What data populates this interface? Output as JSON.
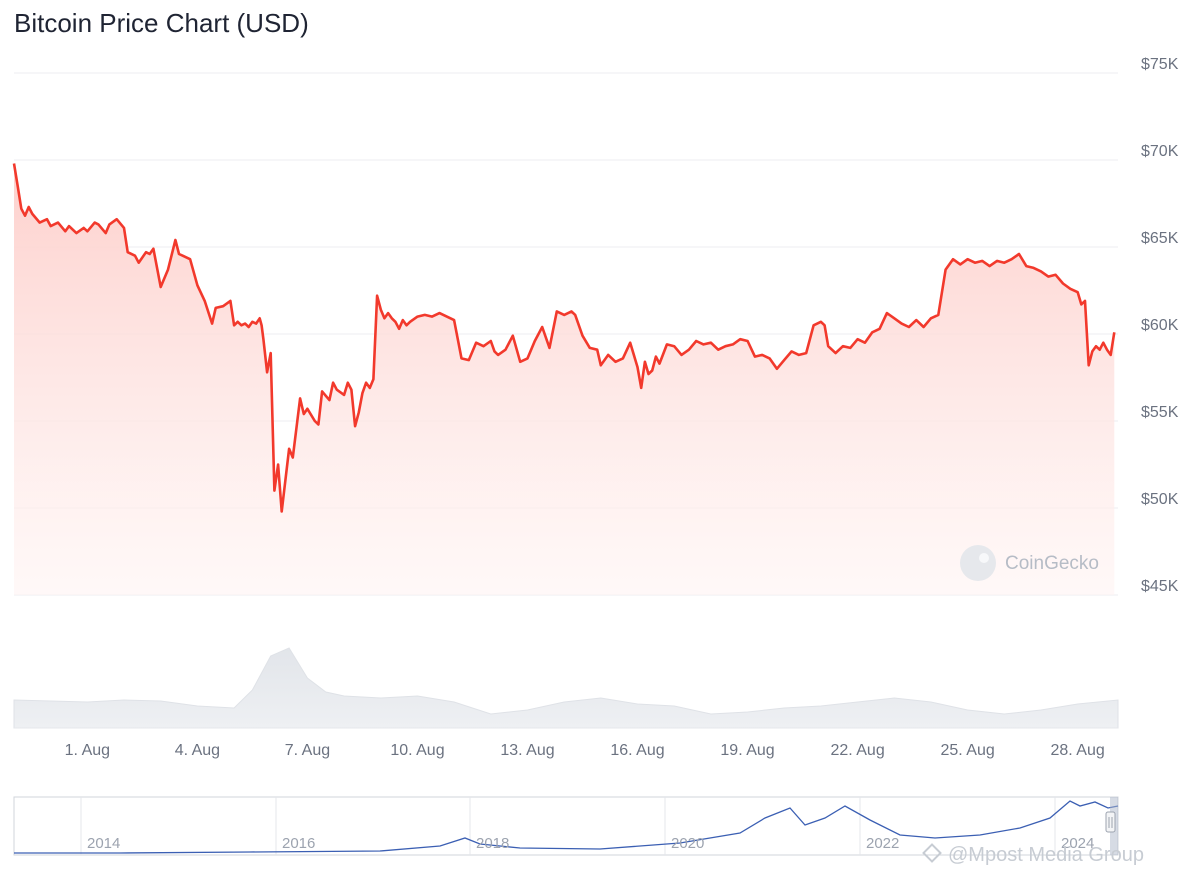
{
  "title": "Bitcoin Price Chart (USD)",
  "watermark": "CoinGecko",
  "credit": "@Mpost Media Group",
  "colors": {
    "line": "#f2392c",
    "fillTop": "#fdd3d0",
    "volume": "#e5e7eb",
    "navigator": "#3b5fb3"
  },
  "chart_data": [
    {
      "type": "area",
      "title": "Bitcoin Price Chart (USD)",
      "xlabel": "",
      "ylabel": "",
      "ylim": [
        45000,
        75000
      ],
      "xlim": [
        0,
        30.1
      ],
      "y_axis_side": "right",
      "grid": true,
      "yticks": [
        {
          "value": 75000,
          "label": "$75K"
        },
        {
          "value": 70000,
          "label": "$70K"
        },
        {
          "value": 65000,
          "label": "$65K"
        },
        {
          "value": 60000,
          "label": "$60K"
        },
        {
          "value": 55000,
          "label": "$55K"
        },
        {
          "value": 50000,
          "label": "$50K"
        },
        {
          "value": 45000,
          "label": "$45K"
        }
      ],
      "xticks": [
        {
          "value": 2,
          "label": "1. Aug"
        },
        {
          "value": 5,
          "label": "4. Aug"
        },
        {
          "value": 8,
          "label": "7. Aug"
        },
        {
          "value": 11,
          "label": "10. Aug"
        },
        {
          "value": 14,
          "label": "13. Aug"
        },
        {
          "value": 17,
          "label": "16. Aug"
        },
        {
          "value": 20,
          "label": "19. Aug"
        },
        {
          "value": 23,
          "label": "22. Aug"
        },
        {
          "value": 26,
          "label": "25. Aug"
        },
        {
          "value": 29,
          "label": "28. Aug"
        }
      ],
      "series": [
        {
          "x": [
            0,
            0.1,
            0.2,
            0.3,
            0.4,
            0.5,
            0.7,
            0.9,
            1.0,
            1.2,
            1.4,
            1.5,
            1.7,
            1.9,
            2.0,
            2.2,
            2.3,
            2.5,
            2.6,
            2.8,
            3.0,
            3.1,
            3.3,
            3.4,
            3.6,
            3.7,
            3.8,
            4.0,
            4.2,
            4.4,
            4.5,
            4.6,
            4.7,
            4.8,
            5.0,
            5.2,
            5.4,
            5.5,
            5.7,
            5.9,
            6.0,
            6.1,
            6.2,
            6.3,
            6.4,
            6.5,
            6.6,
            6.7,
            6.75,
            6.8,
            6.9,
            7.0,
            7.1,
            7.2,
            7.3,
            7.5,
            7.6,
            7.8,
            7.9,
            8.0,
            8.2,
            8.3,
            8.4,
            8.6,
            8.7,
            8.8,
            9.0,
            9.1,
            9.2,
            9.3,
            9.4,
            9.5,
            9.6,
            9.7,
            9.8,
            9.9,
            10.0,
            10.1,
            10.2,
            10.3,
            10.4,
            10.5,
            10.6,
            10.7,
            10.8,
            11.0,
            11.2,
            11.4,
            11.6,
            11.8,
            12.0,
            12.2,
            12.4,
            12.6,
            12.8,
            13.0,
            13.1,
            13.2,
            13.4,
            13.6,
            13.8,
            14.0,
            14.2,
            14.4,
            14.6,
            14.8,
            15.0,
            15.2,
            15.3,
            15.5,
            15.7,
            15.9,
            16.0,
            16.2,
            16.4,
            16.6,
            16.8,
            17.0,
            17.1,
            17.2,
            17.3,
            17.4,
            17.5,
            17.6,
            17.8,
            18.0,
            18.2,
            18.4,
            18.6,
            18.8,
            19.0,
            19.2,
            19.4,
            19.6,
            19.8,
            20.0,
            20.2,
            20.4,
            20.6,
            20.8,
            21.0,
            21.2,
            21.4,
            21.6,
            21.8,
            22.0,
            22.1,
            22.2,
            22.4,
            22.6,
            22.8,
            23.0,
            23.2,
            23.4,
            23.6,
            23.8,
            24.0,
            24.2,
            24.4,
            24.6,
            24.8,
            25.0,
            25.2,
            25.4,
            25.6,
            25.8,
            26.0,
            26.2,
            26.4,
            26.6,
            26.8,
            27.0,
            27.2,
            27.4,
            27.6,
            27.8,
            28.0,
            28.2,
            28.4,
            28.6,
            28.8,
            29.0,
            29.1,
            29.2,
            29.3,
            29.4,
            29.5,
            29.6,
            29.7,
            29.8,
            29.9,
            30.0
          ],
          "y": [
            69800,
            68500,
            67200,
            66800,
            67300,
            66900,
            66400,
            66600,
            66200,
            66400,
            65900,
            66200,
            65800,
            66100,
            65900,
            66400,
            66300,
            65800,
            66300,
            66600,
            66100,
            64700,
            64500,
            64100,
            64700,
            64600,
            64900,
            62700,
            63700,
            65400,
            64600,
            64500,
            64400,
            64300,
            62800,
            61900,
            60600,
            61500,
            61600,
            61900,
            60500,
            60700,
            60500,
            60600,
            60400,
            60700,
            60600,
            60900,
            60500,
            59700,
            57800,
            58900,
            51000,
            52500,
            49800,
            53400,
            52900,
            56300,
            55400,
            55700,
            55000,
            54800,
            56700,
            56200,
            57200,
            56800,
            56500,
            57200,
            56800,
            54700,
            55500,
            56600,
            57200,
            56900,
            57400,
            62200,
            61400,
            60900,
            61200,
            60900,
            60700,
            60300,
            60800,
            60500,
            60700,
            61000,
            61100,
            61000,
            61200,
            61000,
            60800,
            58600,
            58500,
            59500,
            59300,
            59600,
            59000,
            58800,
            59100,
            59900,
            58400,
            58600,
            59600,
            60400,
            59200,
            61300,
            61100,
            61300,
            61100,
            59900,
            59200,
            59100,
            58200,
            58800,
            58400,
            58600,
            59500,
            58100,
            56900,
            58400,
            57700,
            57900,
            58700,
            58300,
            59400,
            59300,
            58800,
            59100,
            59600,
            59400,
            59500,
            59100,
            59300,
            59400,
            59700,
            59600,
            58700,
            58800,
            58600,
            58000,
            58500,
            59000,
            58800,
            58900,
            60500,
            60700,
            60500,
            59300,
            58900,
            59300,
            59200,
            59700,
            59500,
            60100,
            60300,
            61200,
            60900,
            60600,
            60400,
            60800,
            60400,
            60900,
            61100,
            63700,
            64300,
            64000,
            64300,
            64100,
            64200,
            63900,
            64200,
            64100,
            64300,
            64600,
            63900,
            63800,
            63600,
            63300,
            63400,
            62900,
            62600,
            62400,
            61700,
            61900,
            58200,
            59000,
            59300,
            59100,
            59500,
            59100,
            58800,
            60100
          ]
        }
      ]
    }
  ]
}
